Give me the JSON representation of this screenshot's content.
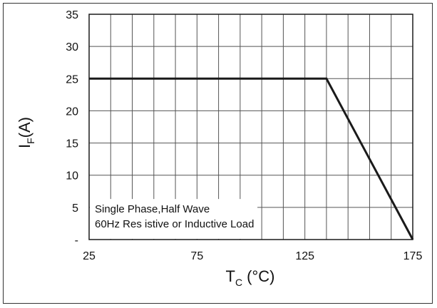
{
  "chart_data": {
    "type": "line",
    "title": "",
    "xlabel": {
      "main": "T",
      "sub": "C",
      "unit": " (°C)"
    },
    "ylabel": {
      "main": "I",
      "sub": "F",
      "unit": "(A)"
    },
    "xlim": [
      25,
      175
    ],
    "ylim": [
      0,
      35
    ],
    "x_ticks": [
      25,
      75,
      125,
      175
    ],
    "x_tick_labels": [
      "25",
      "75",
      "125",
      "175"
    ],
    "y_ticks": [
      0,
      5,
      10,
      15,
      20,
      25,
      30,
      35
    ],
    "y_tick_labels": [
      "-",
      "5",
      "10",
      "15",
      "20",
      "25",
      "30",
      "35"
    ],
    "x_grid_step": 10,
    "y_grid_step": 5,
    "grid": true,
    "series": [
      {
        "x": [
          25,
          135,
          175
        ],
        "y": [
          25,
          25,
          0
        ]
      }
    ],
    "annotation": {
      "line1": "Single  Phase,Half  Wave",
      "line2": "60Hz  Res  istive or Inductive Load"
    },
    "colors": {
      "line": "#1a1a1a",
      "grid": "#555555",
      "frame": "#333333"
    }
  }
}
